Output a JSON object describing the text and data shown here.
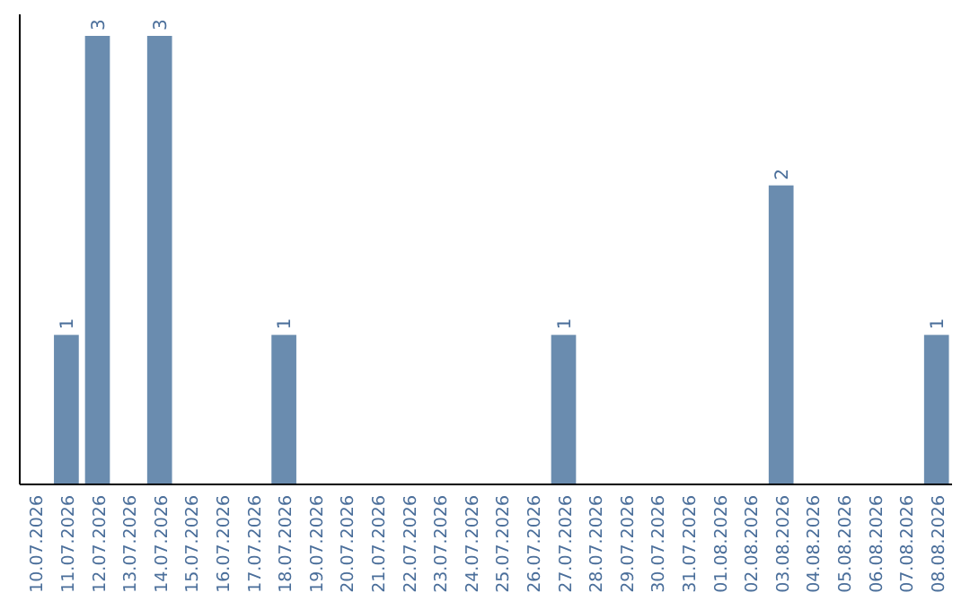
{
  "chart_data": {
    "type": "bar",
    "categories": [
      "10.07.2026",
      "11.07.2026",
      "12.07.2026",
      "13.07.2026",
      "14.07.2026",
      "15.07.2026",
      "16.07.2026",
      "17.07.2026",
      "18.07.2026",
      "19.07.2026",
      "20.07.2026",
      "21.07.2026",
      "22.07.2026",
      "23.07.2026",
      "24.07.2026",
      "25.07.2026",
      "26.07.2026",
      "27.07.2026",
      "28.07.2026",
      "29.07.2026",
      "30.07.2026",
      "31.07.2026",
      "01.08.2026",
      "02.08.2026",
      "03.08.2026",
      "04.08.2026",
      "05.08.2026",
      "06.08.2026",
      "07.08.2026",
      "08.08.2026"
    ],
    "values": [
      0,
      1,
      3,
      0,
      3,
      0,
      0,
      0,
      1,
      0,
      0,
      0,
      0,
      0,
      0,
      0,
      0,
      1,
      0,
      0,
      0,
      0,
      0,
      0,
      2,
      0,
      0,
      0,
      0,
      1
    ],
    "value_labels": [
      null,
      "1",
      "3",
      null,
      "3",
      null,
      null,
      null,
      "1",
      null,
      null,
      null,
      null,
      null,
      null,
      null,
      null,
      "1",
      null,
      null,
      null,
      null,
      null,
      null,
      "2",
      null,
      null,
      null,
      null,
      "1"
    ],
    "color": "#6a8caf",
    "grid": false
  }
}
